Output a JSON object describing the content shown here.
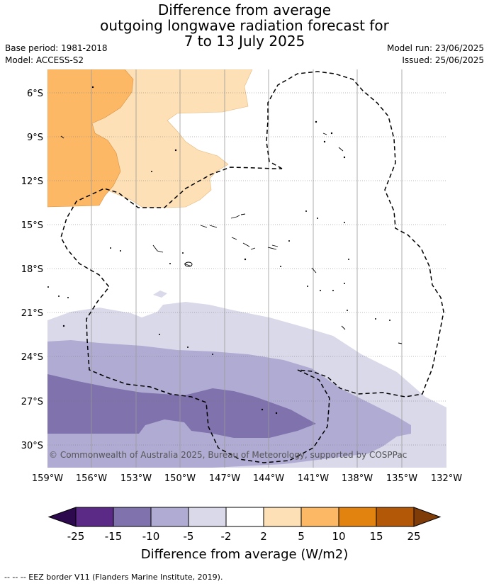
{
  "title": {
    "line1": "Difference from average",
    "line2": "outgoing longwave radiation forecast for",
    "line3": "7 to 13 July 2025"
  },
  "meta": {
    "base_period": "Base period: 1981-2018",
    "model": "Model: ACCESS-S2",
    "model_run": "Model run: 23/06/2025",
    "issued": "Issued: 25/06/2025"
  },
  "axes": {
    "lat_labels": [
      "6°S",
      "9°S",
      "12°S",
      "15°S",
      "18°S",
      "21°S",
      "24°S",
      "27°S",
      "30°S"
    ],
    "lon_labels": [
      "159°W",
      "156°W",
      "153°W",
      "150°W",
      "147°W",
      "144°W",
      "141°W",
      "138°W",
      "135°W",
      "132°W"
    ]
  },
  "copyright": "© Commonwealth of Australia 2025, Bureau of Meteorology, supported by COSPPac",
  "colorbar": {
    "ticks": [
      "-25",
      "-15",
      "-10",
      "-5",
      "-2",
      "2",
      "5",
      "10",
      "15",
      "25"
    ],
    "title": "Difference from average (W/m2)",
    "colors": {
      "lt_neg25": "#2d0a4e",
      "neg25_neg15": "#5a2a86",
      "neg15_neg10": "#7f72ad",
      "neg10_neg5": "#b0abd3",
      "neg5_neg2": "#d9d9ea",
      "neg2_2": "#ffffff",
      "p2_5": "#fde0b6",
      "p5_10": "#fdb865",
      "p10_15": "#e2820f",
      "p15_25": "#b35806",
      "gt_25": "#7f3b08"
    }
  },
  "footer": "--  --  -- EEZ border V11 (Flanders Marine Institute, 2019)."
}
